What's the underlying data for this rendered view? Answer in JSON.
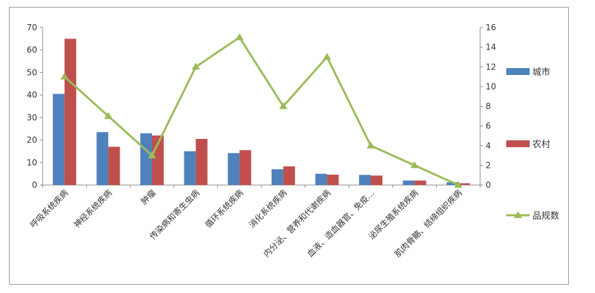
{
  "chart_data": {
    "type": "bar+line",
    "categories": [
      "呼吸系统疾病",
      "神经系统疾病",
      "肿瘤",
      "传染病和寄生虫病",
      "循环系统疾病",
      "消化系统疾病",
      "内分泌、营养和代谢疾病",
      "血液、造血器官、免疫…",
      "泌尿生殖系统疾病",
      "肌肉骨骼、结缔组织疾病"
    ],
    "series": [
      {
        "name": "城市",
        "type": "bar",
        "axis": "left",
        "color": "#4f81bd",
        "values": [
          40.5,
          23.5,
          23,
          15,
          14.2,
          7,
          5,
          4.5,
          2,
          1.2
        ]
      },
      {
        "name": "农村",
        "type": "bar",
        "axis": "left",
        "color": "#c0504d",
        "values": [
          65,
          17,
          22,
          20.5,
          15.5,
          8.3,
          4.6,
          4.2,
          2,
          0.8
        ]
      },
      {
        "name": "品规数",
        "type": "line",
        "axis": "right",
        "color": "#9bbb59",
        "values": [
          11,
          7,
          3,
          12,
          15,
          8,
          13,
          4,
          2,
          0
        ]
      }
    ],
    "y_left": {
      "min": 0,
      "max": 70,
      "ticks": [
        "0",
        "10",
        "20",
        "30",
        "40",
        "50",
        "60",
        "70"
      ]
    },
    "y_right": {
      "min": 0,
      "max": 16,
      "ticks": [
        "0",
        "2",
        "4",
        "6",
        "8",
        "10",
        "12",
        "14",
        "16"
      ]
    },
    "legend_position": "right",
    "grid": false
  }
}
